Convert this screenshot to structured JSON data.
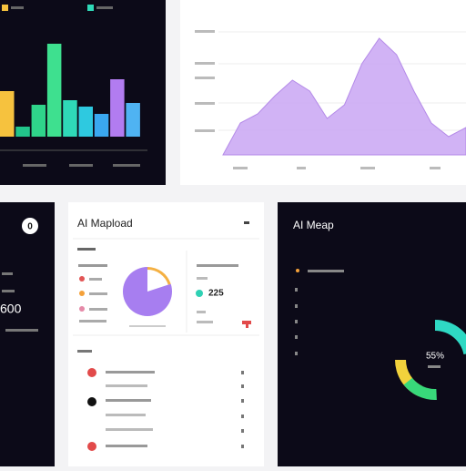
{
  "bar_panel": {
    "chart_data": {
      "type": "bar",
      "values": [
        50,
        11,
        35,
        102,
        40,
        33,
        25,
        63,
        37
      ],
      "colors": [
        "#f6c23e",
        "#22c58b",
        "#2fd48a",
        "#3ee08f",
        "#2fd9b8",
        "#2ec9e0",
        "#3aa8f0",
        "#b27cf0",
        "#4fb3f2"
      ]
    }
  },
  "area_panel": {
    "chart_data": {
      "type": "area",
      "values": [
        0,
        35,
        45,
        65,
        82,
        70,
        40,
        55,
        100,
        128,
        110,
        70,
        35,
        20,
        30
      ],
      "color": "#c9a6f3"
    }
  },
  "left_panel": {
    "badge": "0",
    "value": "600"
  },
  "card": {
    "title": "AI Mapload",
    "stat": "225",
    "chart_data": {
      "type": "pie",
      "values": [
        80,
        20
      ],
      "colors": [
        "#a77ef0",
        "#f4b042"
      ]
    }
  },
  "dark_panel": {
    "title": "AI Meap",
    "percent": "55%",
    "chart_data": {
      "type": "donut",
      "values": [
        22,
        18,
        15
      ],
      "colors": [
        "#2fd9c4",
        "#f2d23c",
        "#38d97a"
      ]
    }
  }
}
